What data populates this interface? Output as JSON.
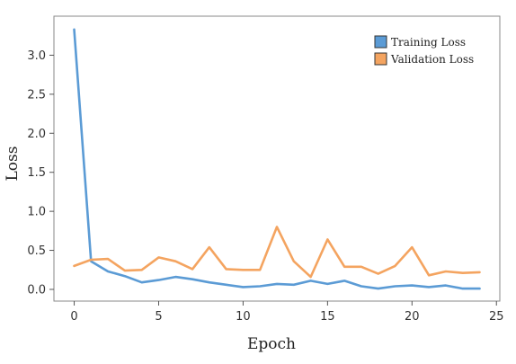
{
  "chart_data": {
    "type": "line",
    "xlabel": "Epoch",
    "ylabel": "Loss",
    "xlim": [
      -1.2,
      25.2
    ],
    "ylim": [
      -0.15,
      3.5
    ],
    "xticks": [
      0,
      5,
      10,
      15,
      20,
      25
    ],
    "yticks": [
      0.0,
      0.5,
      1.0,
      1.5,
      2.0,
      2.5,
      3.0
    ],
    "ytick_labels": [
      "0.0",
      "0.5",
      "1.0",
      "1.5",
      "2.0",
      "2.5",
      "3.0"
    ],
    "grid": false,
    "legend_position": "top-right",
    "x": [
      0,
      1,
      2,
      3,
      4,
      5,
      6,
      7,
      8,
      9,
      10,
      11,
      12,
      13,
      14,
      15,
      16,
      17,
      18,
      19,
      20,
      21,
      22,
      23,
      24
    ],
    "series": [
      {
        "name": "Training Loss",
        "color": "#5b9bd5",
        "values": [
          3.33,
          0.36,
          0.23,
          0.17,
          0.09,
          0.12,
          0.16,
          0.13,
          0.09,
          0.06,
          0.03,
          0.04,
          0.07,
          0.06,
          0.11,
          0.07,
          0.11,
          0.04,
          0.01,
          0.04,
          0.05,
          0.03,
          0.05,
          0.01,
          0.01
        ]
      },
      {
        "name": "Validation Loss",
        "color": "#f4a460",
        "values": [
          0.3,
          0.38,
          0.39,
          0.24,
          0.25,
          0.41,
          0.36,
          0.26,
          0.54,
          0.26,
          0.25,
          0.25,
          0.8,
          0.36,
          0.16,
          0.64,
          0.29,
          0.29,
          0.2,
          0.3,
          0.54,
          0.18,
          0.23,
          0.21,
          0.22
        ]
      }
    ]
  }
}
